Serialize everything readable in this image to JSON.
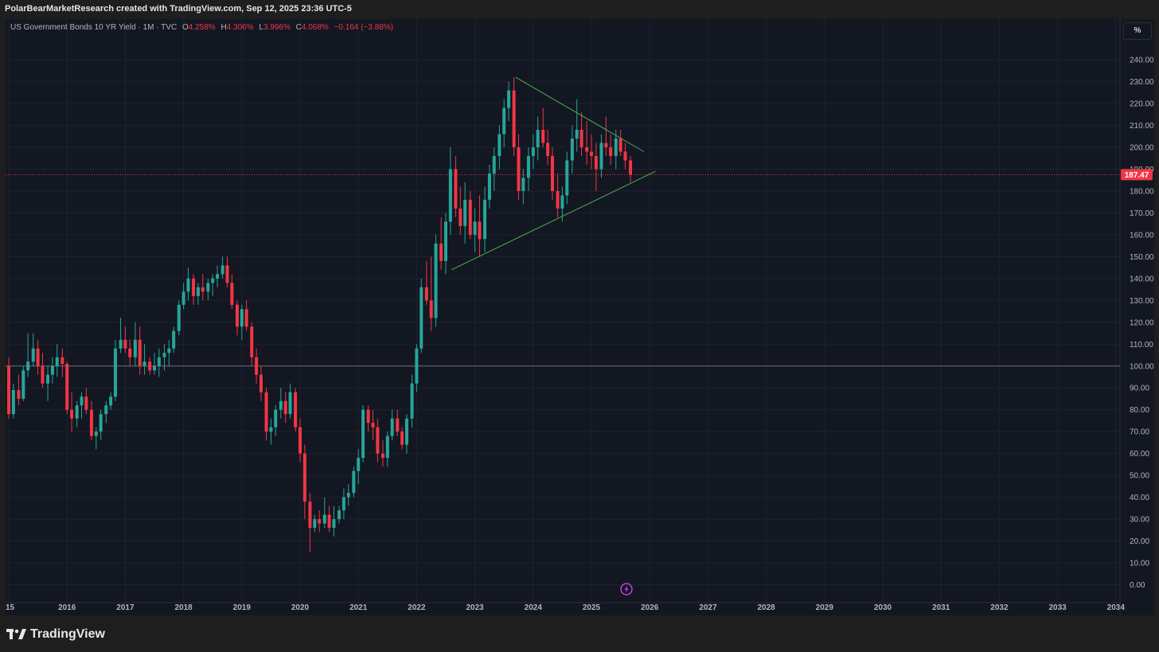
{
  "header": {
    "credit": "PolarBearMarketResearch created with TradingView.com, Sep 12, 2025 23:36 UTC-5"
  },
  "legend": {
    "symbol": "US Government Bonds 10 YR Yield · 1M · TVC",
    "o_label": "O",
    "o_value": "4.258%",
    "h_label": "H",
    "h_value": "4.306%",
    "l_label": "L",
    "l_value": "3.996%",
    "c_label": "C",
    "c_value": "4.068%",
    "change": "−0.164 (−3.88%)"
  },
  "scale_button": "%",
  "footer": {
    "brand": "TradingView"
  },
  "colors": {
    "up": "#26a69a",
    "down": "#f23645",
    "trend": "#4caf50",
    "grid": "#1e2230",
    "bg": "#131722"
  },
  "chart_data": {
    "type": "candlestick",
    "x_axis": {
      "start_year": 2015,
      "end_year": 2034,
      "tick_labels": [
        "15",
        "2016",
        "2017",
        "2018",
        "2019",
        "2020",
        "2021",
        "2022",
        "2023",
        "2024",
        "2025",
        "2026",
        "2027",
        "2028",
        "2029",
        "2030",
        "2031",
        "2032",
        "2033",
        "2034"
      ]
    },
    "y_axis": {
      "min": 0,
      "max": 240,
      "step": 10,
      "tick_labels": [
        "0.00",
        "10.00",
        "20.00",
        "30.00",
        "40.00",
        "50.00",
        "60.00",
        "70.00",
        "80.00",
        "90.00",
        "100.00",
        "110.00",
        "120.00",
        "130.00",
        "140.00",
        "150.00",
        "160.00",
        "170.00",
        "180.00",
        "190.00",
        "200.00",
        "210.00",
        "220.00",
        "230.00",
        "240.00"
      ],
      "grid": true
    },
    "baseline": 100,
    "last_price": 187.47,
    "last_price_label": "187.47",
    "trendlines": [
      {
        "name": "upper",
        "from": [
          2023.7,
          232
        ],
        "to": [
          2025.9,
          198
        ]
      },
      {
        "name": "lower",
        "from": [
          2022.6,
          144
        ],
        "to": [
          2026.1,
          189
        ]
      }
    ],
    "series": [
      {
        "name": "price",
        "candles": [
          [
            2015.0,
            100,
            104,
            76,
            78
          ],
          [
            2015.08,
            78,
            92,
            76,
            89
          ],
          [
            2015.17,
            89,
            96,
            82,
            85
          ],
          [
            2015.25,
            85,
            100,
            84,
            98
          ],
          [
            2015.33,
            98,
            115,
            95,
            102
          ],
          [
            2015.42,
            102,
            115,
            100,
            108
          ],
          [
            2015.5,
            108,
            112,
            96,
            100
          ],
          [
            2015.58,
            100,
            106,
            90,
            92
          ],
          [
            2015.67,
            92,
            100,
            84,
            96
          ],
          [
            2015.75,
            96,
            104,
            92,
            100
          ],
          [
            2015.83,
            100,
            110,
            95,
            104
          ],
          [
            2015.92,
            104,
            108,
            95,
            101
          ],
          [
            2016.0,
            101,
            102,
            78,
            80
          ],
          [
            2016.08,
            80,
            88,
            70,
            76
          ],
          [
            2016.17,
            76,
            84,
            72,
            82
          ],
          [
            2016.25,
            82,
            88,
            76,
            86
          ],
          [
            2016.33,
            86,
            90,
            78,
            80
          ],
          [
            2016.42,
            80,
            84,
            66,
            68
          ],
          [
            2016.5,
            68,
            72,
            62,
            70
          ],
          [
            2016.58,
            70,
            80,
            66,
            78
          ],
          [
            2016.67,
            78,
            84,
            74,
            82
          ],
          [
            2016.75,
            82,
            88,
            80,
            86
          ],
          [
            2016.83,
            86,
            112,
            84,
            108
          ],
          [
            2016.92,
            108,
            122,
            106,
            112
          ],
          [
            2017.0,
            112,
            118,
            106,
            108
          ],
          [
            2017.08,
            108,
            112,
            100,
            104
          ],
          [
            2017.17,
            104,
            120,
            100,
            112
          ],
          [
            2017.25,
            112,
            118,
            96,
            100
          ],
          [
            2017.33,
            100,
            110,
            96,
            102
          ],
          [
            2017.42,
            102,
            104,
            96,
            98
          ],
          [
            2017.5,
            98,
            106,
            96,
            100
          ],
          [
            2017.58,
            100,
            108,
            95,
            104
          ],
          [
            2017.67,
            104,
            110,
            98,
            106
          ],
          [
            2017.75,
            106,
            112,
            100,
            108
          ],
          [
            2017.83,
            108,
            118,
            106,
            116
          ],
          [
            2017.92,
            116,
            130,
            114,
            128
          ],
          [
            2018.0,
            128,
            138,
            126,
            134
          ],
          [
            2018.08,
            134,
            145,
            130,
            140
          ],
          [
            2018.17,
            140,
            142,
            128,
            132
          ],
          [
            2018.25,
            132,
            138,
            128,
            136
          ],
          [
            2018.33,
            136,
            142,
            130,
            134
          ],
          [
            2018.42,
            134,
            140,
            130,
            138
          ],
          [
            2018.5,
            138,
            142,
            132,
            140
          ],
          [
            2018.58,
            140,
            146,
            136,
            142
          ],
          [
            2018.67,
            142,
            150,
            140,
            146
          ],
          [
            2018.75,
            146,
            150,
            136,
            138
          ],
          [
            2018.83,
            138,
            142,
            126,
            128
          ],
          [
            2018.92,
            128,
            130,
            114,
            118
          ],
          [
            2019.0,
            118,
            128,
            112,
            126
          ],
          [
            2019.08,
            126,
            130,
            116,
            118
          ],
          [
            2019.17,
            118,
            120,
            100,
            104
          ],
          [
            2019.25,
            104,
            108,
            92,
            96
          ],
          [
            2019.33,
            96,
            100,
            84,
            88
          ],
          [
            2019.42,
            88,
            90,
            66,
            70
          ],
          [
            2019.5,
            70,
            76,
            64,
            72
          ],
          [
            2019.58,
            72,
            82,
            68,
            80
          ],
          [
            2019.67,
            80,
            90,
            76,
            84
          ],
          [
            2019.75,
            84,
            88,
            74,
            78
          ],
          [
            2019.83,
            78,
            92,
            76,
            88
          ],
          [
            2019.92,
            88,
            90,
            70,
            72
          ],
          [
            2020.0,
            72,
            76,
            56,
            60
          ],
          [
            2020.08,
            60,
            64,
            30,
            38
          ],
          [
            2020.17,
            38,
            42,
            15,
            26
          ],
          [
            2020.25,
            26,
            32,
            24,
            30
          ],
          [
            2020.33,
            30,
            34,
            24,
            28
          ],
          [
            2020.42,
            28,
            40,
            26,
            32
          ],
          [
            2020.5,
            32,
            36,
            24,
            26
          ],
          [
            2020.58,
            26,
            36,
            22,
            30
          ],
          [
            2020.67,
            30,
            36,
            28,
            34
          ],
          [
            2020.75,
            34,
            44,
            30,
            40
          ],
          [
            2020.83,
            40,
            46,
            36,
            42
          ],
          [
            2020.92,
            42,
            54,
            40,
            52
          ],
          [
            2021.0,
            52,
            62,
            46,
            58
          ],
          [
            2021.08,
            58,
            82,
            56,
            80
          ],
          [
            2021.17,
            80,
            82,
            70,
            74
          ],
          [
            2021.25,
            74,
            80,
            66,
            72
          ],
          [
            2021.33,
            72,
            76,
            56,
            60
          ],
          [
            2021.42,
            60,
            66,
            54,
            58
          ],
          [
            2021.5,
            58,
            70,
            54,
            68
          ],
          [
            2021.58,
            68,
            80,
            66,
            76
          ],
          [
            2021.67,
            76,
            80,
            68,
            70
          ],
          [
            2021.75,
            70,
            72,
            62,
            64
          ],
          [
            2021.83,
            64,
            78,
            60,
            76
          ],
          [
            2021.92,
            76,
            96,
            72,
            92
          ],
          [
            2022.0,
            92,
            110,
            88,
            108
          ],
          [
            2022.08,
            108,
            140,
            106,
            136
          ],
          [
            2022.17,
            136,
            148,
            128,
            130
          ],
          [
            2022.25,
            130,
            150,
            116,
            122
          ],
          [
            2022.33,
            122,
            160,
            118,
            156
          ],
          [
            2022.42,
            156,
            168,
            144,
            148
          ],
          [
            2022.5,
            148,
            170,
            142,
            166
          ],
          [
            2022.58,
            166,
            200,
            160,
            190
          ],
          [
            2022.67,
            190,
            196,
            168,
            172
          ],
          [
            2022.75,
            172,
            182,
            160,
            164
          ],
          [
            2022.83,
            164,
            184,
            156,
            176
          ],
          [
            2022.92,
            176,
            180,
            158,
            160
          ],
          [
            2023.0,
            160,
            172,
            152,
            166
          ],
          [
            2023.08,
            166,
            178,
            150,
            158
          ],
          [
            2023.17,
            158,
            182,
            152,
            176
          ],
          [
            2023.25,
            176,
            192,
            172,
            188
          ],
          [
            2023.33,
            188,
            200,
            180,
            196
          ],
          [
            2023.42,
            196,
            210,
            190,
            206
          ],
          [
            2023.5,
            206,
            222,
            200,
            218
          ],
          [
            2023.58,
            218,
            230,
            212,
            226
          ],
          [
            2023.67,
            226,
            232,
            196,
            200
          ],
          [
            2023.75,
            200,
            206,
            176,
            180
          ],
          [
            2023.83,
            180,
            190,
            174,
            186
          ],
          [
            2023.92,
            186,
            200,
            180,
            196
          ],
          [
            2024.0,
            196,
            206,
            190,
            200
          ],
          [
            2024.08,
            200,
            214,
            194,
            208
          ],
          [
            2024.17,
            208,
            218,
            200,
            202
          ],
          [
            2024.25,
            202,
            208,
            192,
            196
          ],
          [
            2024.33,
            196,
            200,
            176,
            180
          ],
          [
            2024.42,
            180,
            188,
            168,
            172
          ],
          [
            2024.5,
            172,
            182,
            166,
            178
          ],
          [
            2024.58,
            178,
            198,
            174,
            194
          ],
          [
            2024.67,
            194,
            210,
            188,
            204
          ],
          [
            2024.75,
            204,
            222,
            198,
            208
          ],
          [
            2024.83,
            208,
            216,
            196,
            200
          ],
          [
            2024.92,
            200,
            212,
            192,
            198
          ],
          [
            2025.0,
            198,
            206,
            190,
            196
          ],
          [
            2025.08,
            196,
            202,
            180,
            190
          ],
          [
            2025.17,
            190,
            206,
            186,
            202
          ],
          [
            2025.25,
            202,
            214,
            196,
            200
          ],
          [
            2025.33,
            200,
            206,
            192,
            196
          ],
          [
            2025.42,
            196,
            208,
            190,
            204
          ],
          [
            2025.5,
            204,
            208,
            196,
            198
          ],
          [
            2025.58,
            198,
            202,
            190,
            194
          ],
          [
            2025.67,
            194,
            196,
            184,
            187.5
          ]
        ]
      }
    ]
  }
}
